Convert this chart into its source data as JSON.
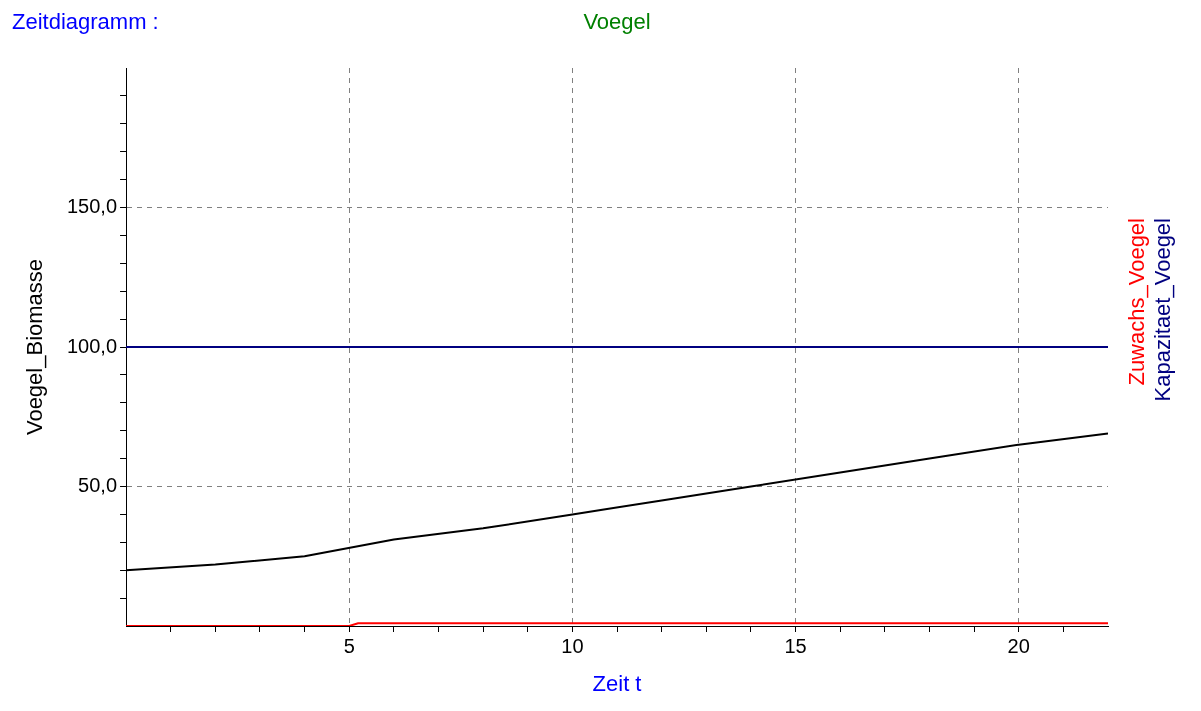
{
  "chart_data": {
    "type": "line",
    "title": "Voegel",
    "xlabel": "Zeit t",
    "ylabel": "Voegel_Biomasse",
    "annotations": [
      "Zeitdiagramm :"
    ],
    "xlim": [
      0,
      22
    ],
    "ylim": [
      0,
      200
    ],
    "xticks": [
      {
        "value": 1,
        "label": null
      },
      {
        "value": 2,
        "label": null
      },
      {
        "value": 3,
        "label": null
      },
      {
        "value": 4,
        "label": null
      },
      {
        "value": 5,
        "label": "5"
      },
      {
        "value": 6,
        "label": null
      },
      {
        "value": 7,
        "label": null
      },
      {
        "value": 8,
        "label": null
      },
      {
        "value": 9,
        "label": null
      },
      {
        "value": 10,
        "label": "10"
      },
      {
        "value": 11,
        "label": null
      },
      {
        "value": 12,
        "label": null
      },
      {
        "value": 13,
        "label": null
      },
      {
        "value": 14,
        "label": null
      },
      {
        "value": 15,
        "label": "15"
      },
      {
        "value": 16,
        "label": null
      },
      {
        "value": 17,
        "label": null
      },
      {
        "value": 18,
        "label": null
      },
      {
        "value": 19,
        "label": null
      },
      {
        "value": 20,
        "label": "20"
      },
      {
        "value": 21,
        "label": null
      }
    ],
    "yticks": [
      {
        "value": 10,
        "label": null
      },
      {
        "value": 20,
        "label": null
      },
      {
        "value": 30,
        "label": null
      },
      {
        "value": 40,
        "label": null
      },
      {
        "value": 50,
        "label": "50,0"
      },
      {
        "value": 60,
        "label": null
      },
      {
        "value": 70,
        "label": null
      },
      {
        "value": 80,
        "label": null
      },
      {
        "value": 90,
        "label": null
      },
      {
        "value": 100,
        "label": "100,0"
      },
      {
        "value": 110,
        "label": null
      },
      {
        "value": 120,
        "label": null
      },
      {
        "value": 130,
        "label": null
      },
      {
        "value": 140,
        "label": null
      },
      {
        "value": 150,
        "label": "150,0"
      },
      {
        "value": 160,
        "label": null
      },
      {
        "value": 170,
        "label": null
      },
      {
        "value": 180,
        "label": null
      },
      {
        "value": 190,
        "label": null
      }
    ],
    "grid": true,
    "legend": "right",
    "line_style": "solid",
    "marker": "none",
    "series": [
      {
        "color": "#000000",
        "x": [
          0,
          2,
          4,
          6,
          8,
          10,
          12,
          14,
          16,
          18,
          20,
          22
        ],
        "values": [
          20,
          22,
          25,
          31,
          35,
          40,
          45,
          50,
          55,
          60,
          65,
          69
        ]
      },
      {
        "name": "Zuwachs_Voegel",
        "color": "#ff0000",
        "x": [
          0,
          5,
          5.2,
          22
        ],
        "values": [
          0,
          0,
          1,
          1
        ]
      },
      {
        "name": "Kapazitaet_Voegel",
        "color": "#000080",
        "x": [
          0,
          22
        ],
        "values": [
          100,
          100
        ]
      }
    ]
  }
}
